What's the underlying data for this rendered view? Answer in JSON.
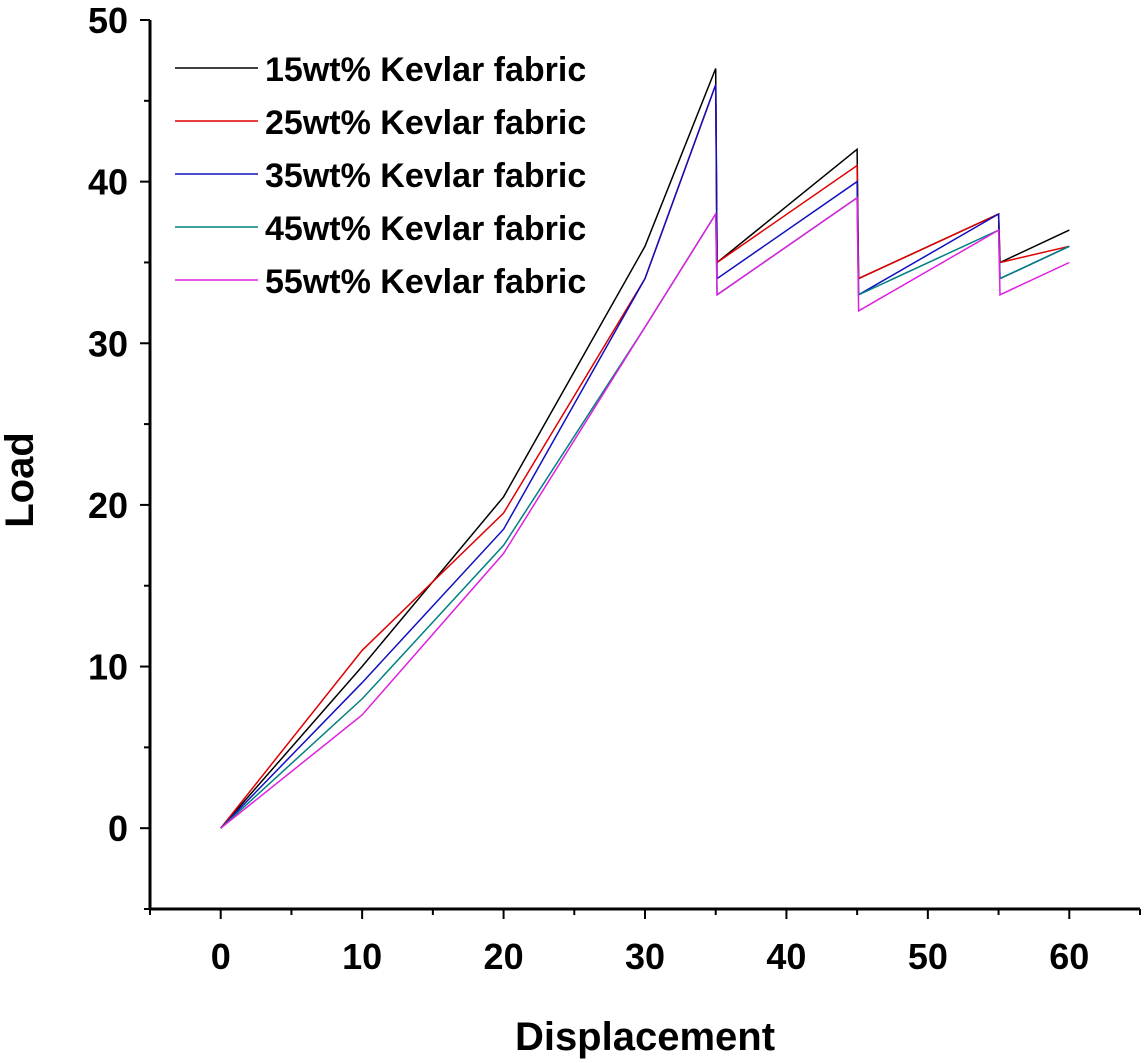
{
  "chart_data": {
    "type": "line",
    "xlabel": "Displacement",
    "ylabel": "Load",
    "xlim": [
      -5,
      65
    ],
    "ylim": [
      -5,
      50
    ],
    "x_ticks": [
      "0",
      "10",
      "20",
      "30",
      "40",
      "50",
      "60"
    ],
    "y_ticks": [
      "0",
      "10",
      "20",
      "30",
      "40",
      "50"
    ],
    "legend_position": "top-left",
    "grid": false,
    "series": [
      {
        "name": "15wt% Kevlar fabric",
        "color": "#000000",
        "points": [
          [
            0,
            0
          ],
          [
            10,
            10
          ],
          [
            20,
            20.5
          ],
          [
            30,
            36
          ],
          [
            35,
            47
          ],
          [
            35.1,
            35
          ],
          [
            45,
            42
          ],
          [
            45.1,
            34
          ],
          [
            55,
            38
          ],
          [
            55.1,
            35
          ],
          [
            60,
            37
          ]
        ]
      },
      {
        "name": "25wt% Kevlar fabric",
        "color": "#e00000",
        "points": [
          [
            0,
            0
          ],
          [
            10,
            11
          ],
          [
            20,
            19.5
          ],
          [
            30,
            34
          ],
          [
            35,
            46
          ],
          [
            35.1,
            35
          ],
          [
            45,
            41
          ],
          [
            45.1,
            34
          ],
          [
            55,
            38
          ],
          [
            55.1,
            35
          ],
          [
            60,
            36
          ]
        ]
      },
      {
        "name": "35wt% Kevlar fabric",
        "color": "#1010c0",
        "points": [
          [
            0,
            0
          ],
          [
            10,
            9
          ],
          [
            20,
            18.5
          ],
          [
            30,
            34
          ],
          [
            35,
            46
          ],
          [
            35.1,
            34
          ],
          [
            45,
            40
          ],
          [
            45.1,
            33
          ],
          [
            55,
            38
          ],
          [
            55.1,
            34
          ],
          [
            60,
            36
          ]
        ]
      },
      {
        "name": "45wt% Kevlar fabric",
        "color": "#008080",
        "points": [
          [
            0,
            0
          ],
          [
            10,
            8
          ],
          [
            20,
            17.5
          ],
          [
            30,
            31
          ],
          [
            35,
            38
          ],
          [
            35.1,
            33
          ],
          [
            45,
            39
          ],
          [
            45.1,
            33
          ],
          [
            55,
            37
          ],
          [
            55.1,
            34
          ],
          [
            60,
            36
          ]
        ]
      },
      {
        "name": "55wt% Kevlar fabric",
        "color": "#e020e0",
        "points": [
          [
            0,
            0
          ],
          [
            10,
            7
          ],
          [
            20,
            17
          ],
          [
            30,
            31
          ],
          [
            35,
            38
          ],
          [
            35.1,
            33
          ],
          [
            45,
            39
          ],
          [
            45.1,
            32
          ],
          [
            55,
            37
          ],
          [
            55.1,
            33
          ],
          [
            60,
            35
          ]
        ]
      }
    ]
  }
}
